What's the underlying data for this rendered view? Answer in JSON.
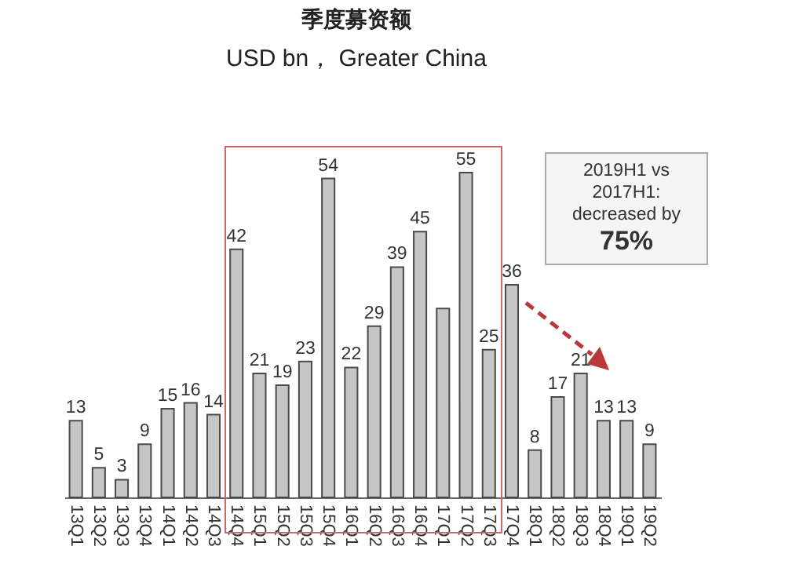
{
  "chart_data": {
    "type": "bar",
    "title": "季度募资额",
    "subtitle": "USD bn， Greater China",
    "categories": [
      "13Q1",
      "13Q2",
      "13Q3",
      "13Q4",
      "14Q1",
      "14Q2",
      "14Q3",
      "14Q4",
      "15Q1",
      "15Q2",
      "15Q3",
      "15Q4",
      "16Q1",
      "16Q2",
      "16Q3",
      "16Q4",
      "17Q1",
      "17Q2",
      "17Q3",
      "17Q4",
      "18Q1",
      "18Q2",
      "18Q3",
      "18Q4",
      "19Q1",
      "19Q2"
    ],
    "values": [
      13,
      5,
      3,
      9,
      15,
      16,
      14,
      42,
      21,
      19,
      23,
      54,
      22,
      29,
      39,
      45,
      32,
      55,
      25,
      36,
      8,
      17,
      21,
      13,
      13,
      9
    ],
    "value_labels": [
      "13",
      "5",
      "3",
      "9",
      "15",
      "16",
      "14",
      "42",
      "21",
      "19",
      "23",
      "54",
      "22",
      "29",
      "39",
      "45",
      null,
      "55",
      "25",
      "36",
      "8",
      "17",
      "21",
      "13",
      "13",
      "9"
    ],
    "color": "#c6c6c6",
    "annotations": [
      "2019H1 vs 2017H1: decreased by",
      "75%"
    ]
  }
}
